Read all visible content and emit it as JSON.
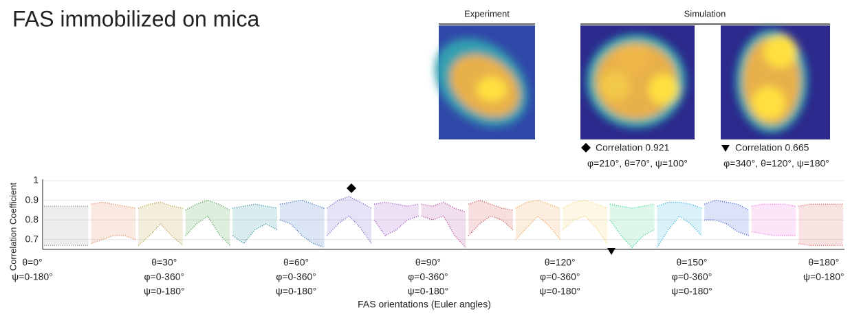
{
  "chart_data": {
    "type": "band-line",
    "title": "FAS immobilized on mica",
    "y_label": "Correlation Coefficient",
    "x_label": "FAS orientations (Euler angles)",
    "ylim": [
      0.65,
      1
    ],
    "yticks": [
      0.7,
      0.8,
      0.9,
      1
    ],
    "grid": true,
    "x_groups": [
      [
        "θ=0°",
        "ψ=0-180°"
      ],
      [
        "θ=30°",
        "φ=0-360°",
        "ψ=0-180°"
      ],
      [
        "θ=60°",
        "φ=0-360°",
        "ψ=0-180°"
      ],
      [
        "θ=90°",
        "φ=0-360°",
        "ψ=0-180°"
      ],
      [
        "θ=120°",
        "φ=0-360°",
        "ψ=0-180°"
      ],
      [
        "θ=150°",
        "φ=0-360°",
        "ψ=0-180°"
      ],
      [
        "θ=180°",
        "ψ=0-180°"
      ]
    ],
    "series": [
      {
        "color": "#9a9a9a",
        "upper": [
          0.87,
          0.87,
          0.87,
          0.87,
          0.87
        ],
        "lower": [
          0.67,
          0.67,
          0.67,
          0.67,
          0.67
        ]
      },
      {
        "color": "#e0875a",
        "upper": [
          0.88,
          0.89,
          0.88,
          0.87,
          0.86
        ],
        "lower": [
          0.68,
          0.7,
          0.72,
          0.72,
          0.7
        ]
      },
      {
        "color": "#b5a03a",
        "upper": [
          0.86,
          0.88,
          0.89,
          0.87,
          0.86
        ],
        "lower": [
          0.67,
          0.72,
          0.78,
          0.72,
          0.67
        ]
      },
      {
        "color": "#4aa04a",
        "upper": [
          0.85,
          0.88,
          0.9,
          0.88,
          0.85
        ],
        "lower": [
          0.72,
          0.78,
          0.82,
          0.73,
          0.67
        ]
      },
      {
        "color": "#2f8f9a",
        "upper": [
          0.86,
          0.87,
          0.88,
          0.87,
          0.86
        ],
        "lower": [
          0.72,
          0.68,
          0.75,
          0.78,
          0.75
        ]
      },
      {
        "color": "#3a6fc0",
        "upper": [
          0.88,
          0.89,
          0.9,
          0.88,
          0.86
        ],
        "lower": [
          0.8,
          0.78,
          0.72,
          0.68,
          0.66
        ]
      },
      {
        "color": "#7a5cc8",
        "upper": [
          0.86,
          0.9,
          0.92,
          0.89,
          0.86
        ],
        "lower": [
          0.72,
          0.78,
          0.82,
          0.76,
          0.68
        ]
      },
      {
        "color": "#9a4ec0",
        "upper": [
          0.88,
          0.89,
          0.88,
          0.87,
          0.88
        ],
        "lower": [
          0.8,
          0.72,
          0.75,
          0.8,
          0.82
        ]
      },
      {
        "color": "#b04a9a",
        "upper": [
          0.88,
          0.87,
          0.89,
          0.86,
          0.84
        ],
        "lower": [
          0.82,
          0.8,
          0.82,
          0.72,
          0.66
        ]
      },
      {
        "color": "#d05050",
        "upper": [
          0.88,
          0.9,
          0.88,
          0.86,
          0.85
        ],
        "lower": [
          0.72,
          0.78,
          0.82,
          0.8,
          0.75
        ]
      },
      {
        "color": "#f0a050",
        "upper": [
          0.86,
          0.89,
          0.9,
          0.88,
          0.86
        ],
        "lower": [
          0.7,
          0.76,
          0.82,
          0.77,
          0.7
        ]
      },
      {
        "color": "#f5d070",
        "upper": [
          0.86,
          0.89,
          0.9,
          0.88,
          0.86
        ],
        "lower": [
          0.75,
          0.8,
          0.82,
          0.76,
          0.68
        ]
      },
      {
        "color": "#40d090",
        "upper": [
          0.88,
          0.87,
          0.86,
          0.87,
          0.88
        ],
        "lower": [
          0.8,
          0.72,
          0.66,
          0.72,
          0.75
        ]
      },
      {
        "color": "#30b0e0",
        "upper": [
          0.87,
          0.89,
          0.89,
          0.88,
          0.86
        ],
        "lower": [
          0.66,
          0.75,
          0.82,
          0.78,
          0.72
        ]
      },
      {
        "color": "#4060d8",
        "upper": [
          0.88,
          0.9,
          0.89,
          0.88,
          0.85
        ],
        "lower": [
          0.8,
          0.8,
          0.78,
          0.74,
          0.72
        ]
      },
      {
        "color": "#f070e0",
        "upper": [
          0.87,
          0.88,
          0.88,
          0.88,
          0.87
        ],
        "lower": [
          0.74,
          0.73,
          0.72,
          0.72,
          0.72
        ]
      },
      {
        "color": "#e06060",
        "upper": [
          0.87,
          0.88,
          0.88,
          0.88,
          0.88
        ],
        "lower": [
          0.68,
          0.67,
          0.67,
          0.67,
          0.67
        ]
      }
    ],
    "panels": {
      "experiment": "Experiment",
      "simulation": "Simulation"
    },
    "annotations": [
      {
        "marker": "diamond",
        "text": "Correlation 0.921",
        "angles": "φ=210°, θ=70°, ψ=100°"
      },
      {
        "marker": "triangle",
        "text": "Correlation 0.665",
        "angles": "φ=340°, θ=120°, ψ=180°"
      }
    ]
  }
}
